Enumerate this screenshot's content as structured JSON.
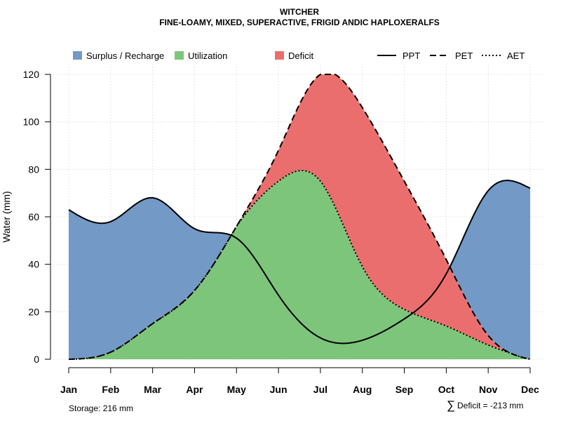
{
  "chart_data": {
    "type": "area",
    "title": "WITCHER",
    "subtitle": "FINE-LOAMY, MIXED, SUPERACTIVE, FRIGID ANDIC HAPLOXERALFS",
    "xlabel": "",
    "ylabel": "Water (mm)",
    "ylim": [
      0,
      120
    ],
    "yticks": [
      0,
      20,
      40,
      60,
      80,
      100,
      120
    ],
    "grid": true,
    "legend_position": "top",
    "categories": [
      "Jan",
      "Feb",
      "Mar",
      "Apr",
      "May",
      "Jun",
      "Jul",
      "Aug",
      "Sep",
      "Oct",
      "Nov",
      "Dec"
    ],
    "series": [
      {
        "name": "PPT",
        "style": "solid",
        "values": [
          63,
          58,
          68,
          55,
          51,
          27,
          9,
          8,
          17,
          36,
          71,
          72
        ]
      },
      {
        "name": "PET",
        "style": "dashed",
        "values": [
          0,
          3,
          15,
          29,
          56,
          88,
          120,
          106,
          75,
          42,
          10,
          0
        ]
      },
      {
        "name": "AET",
        "style": "dotted",
        "values": [
          0,
          3,
          15,
          29,
          56,
          75,
          75,
          39,
          21,
          14,
          6,
          0
        ]
      }
    ],
    "legend": {
      "fills": [
        {
          "label": "Surplus / Recharge",
          "color": "#7399C6"
        },
        {
          "label": "Utilization",
          "color": "#7DC57A"
        },
        {
          "label": "Deficit",
          "color": "#EB6E6E"
        }
      ],
      "lines": [
        {
          "label": "PPT",
          "dash": "solid"
        },
        {
          "label": "PET",
          "dash": "dashed"
        },
        {
          "label": "AET",
          "dash": "dotted"
        }
      ]
    },
    "annotations": {
      "storage": "Storage: 216 mm",
      "deficit_symbol": "∑",
      "deficit": "Deficit = -213 mm"
    }
  }
}
